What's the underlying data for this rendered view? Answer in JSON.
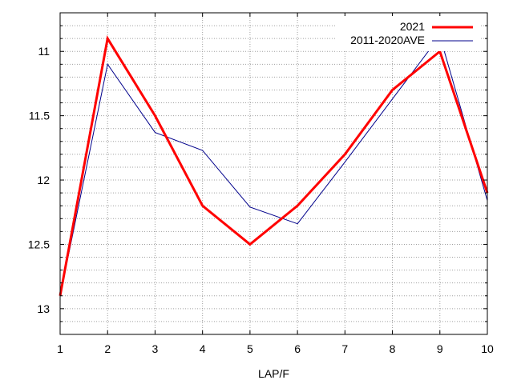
{
  "chart_data": {
    "type": "line",
    "title": "",
    "xlabel": "LAP/F",
    "ylabel": "",
    "x": [
      1,
      2,
      3,
      4,
      5,
      6,
      7,
      8,
      9,
      10
    ],
    "xlim": [
      1,
      10
    ],
    "ylim": [
      10.7,
      13.2
    ],
    "y_inverted": true,
    "x_ticks": [
      1,
      2,
      3,
      4,
      5,
      6,
      7,
      8,
      9,
      10
    ],
    "y_ticks": [
      11,
      11.5,
      12,
      12.5,
      13
    ],
    "y_tick_labels": [
      "11",
      "11.5",
      "12",
      "12.5",
      "13"
    ],
    "grid": true,
    "legend_position": "top-right",
    "series": [
      {
        "name": "2021",
        "color": "#ff0000",
        "values": [
          12.9,
          10.9,
          11.5,
          12.2,
          12.5,
          12.2,
          11.8,
          11.3,
          11.0,
          12.1
        ]
      },
      {
        "name": "2011-2020AVE",
        "color": "#00008b",
        "values": [
          12.9,
          11.1,
          11.63,
          11.77,
          12.21,
          12.34,
          11.86,
          11.37,
          10.88,
          12.16
        ]
      }
    ]
  }
}
